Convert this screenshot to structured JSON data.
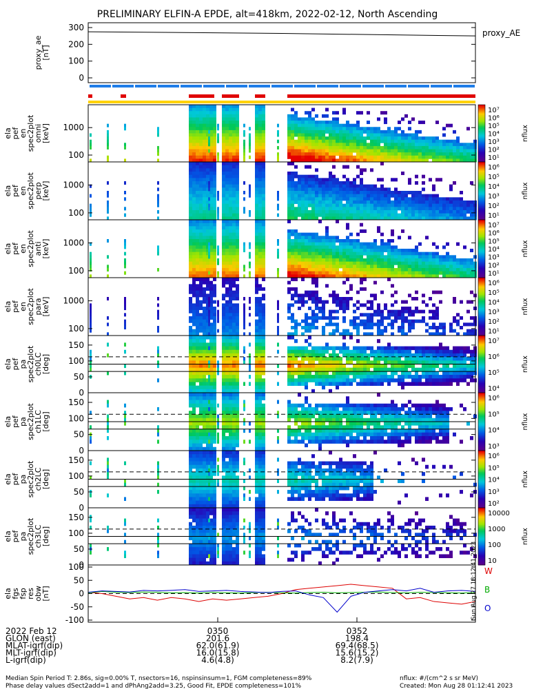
{
  "title": "PRELIMINARY ELFIN-A EPDE, alt=418km, 2022-02-12, North Ascending",
  "panels": [
    {
      "id": "proxy_ae",
      "ylabel": [
        "proxy_ae",
        "[nT]"
      ],
      "yticks": [
        "300",
        "200",
        "100",
        "0"
      ],
      "right_label": "proxy_AE"
    },
    {
      "id": "omni",
      "ylabel": [
        "ela",
        "pef",
        "en",
        "spec2plot",
        "omni",
        "[keV]"
      ],
      "yticks": [
        "1000",
        "100"
      ],
      "cbar_ticks": [
        "10⁷",
        "10⁶",
        "10⁵",
        "10⁴",
        "10³",
        "10²",
        "10¹"
      ],
      "cbar_label": "nflux",
      "kind": "energy",
      "sat": 1.0
    },
    {
      "id": "perp",
      "ylabel": [
        "ela",
        "pef",
        "en",
        "spec2plot",
        "perp",
        "[keV]"
      ],
      "yticks": [
        "1000",
        "100"
      ],
      "cbar_ticks": [
        "10⁶",
        "10⁵",
        "10⁴",
        "10³",
        "10²",
        "10¹"
      ],
      "cbar_label": "nflux",
      "kind": "energy",
      "sat": 0.55
    },
    {
      "id": "anti",
      "ylabel": [
        "ela",
        "pef",
        "en",
        "spec2plot",
        "anti",
        "[keV]"
      ],
      "yticks": [
        "1000",
        "100"
      ],
      "cbar_ticks": [
        "10⁷",
        "10⁶",
        "10⁵",
        "10⁴",
        "10³",
        "10²",
        "10¹"
      ],
      "cbar_label": "nflux",
      "kind": "energy",
      "sat": 0.95
    },
    {
      "id": "para",
      "ylabel": [
        "ela",
        "pef",
        "en",
        "spec2plot",
        "para",
        "[keV]"
      ],
      "yticks": [
        "1000",
        "100"
      ],
      "cbar_ticks": [
        "10⁶",
        "10⁵",
        "10⁴",
        "10³",
        "10²",
        "10¹"
      ],
      "cbar_label": "nflux",
      "kind": "energy",
      "sat": 0.35
    },
    {
      "id": "ch0LC",
      "ylabel": [
        "ela",
        "pef",
        "pa",
        "spec2plot",
        "ch0LC",
        "[deg]"
      ],
      "yticks": [
        "150",
        "100",
        "50",
        "0"
      ],
      "cbar_ticks": [
        "10⁷",
        "10⁶",
        "10⁵",
        "10⁴"
      ],
      "cbar_label": "nflux",
      "kind": "pa",
      "sat": 1.0
    },
    {
      "id": "ch1LC",
      "ylabel": [
        "ela",
        "pef",
        "pa",
        "spec2plot",
        "ch1LC",
        "[deg]"
      ],
      "yticks": [
        "150",
        "100",
        "50",
        "0"
      ],
      "cbar_ticks": [
        "10⁶",
        "10⁵",
        "10⁴",
        "10³"
      ],
      "cbar_label": "nflux",
      "kind": "pa",
      "sat": 0.8
    },
    {
      "id": "ch2LC",
      "ylabel": [
        "ela",
        "pef",
        "pa",
        "spec2plot",
        "ch2LC",
        "[deg]"
      ],
      "yticks": [
        "150",
        "100",
        "50",
        "0"
      ],
      "cbar_ticks": [
        "10⁶",
        "10⁵",
        "10⁴",
        "10³",
        "10²"
      ],
      "cbar_label": "nflux",
      "kind": "pa",
      "sat": 0.55
    },
    {
      "id": "ch3LC",
      "ylabel": [
        "ela",
        "pef",
        "pa",
        "spec2plot",
        "ch3LC",
        "[deg]"
      ],
      "yticks": [
        "150",
        "100",
        "50",
        "0"
      ],
      "cbar_ticks": [
        "10000",
        "1000",
        "100",
        "10"
      ],
      "cbar_label": "nflux",
      "kind": "pa",
      "sat": 0.4
    },
    {
      "id": "fgs",
      "ylabel": [
        "ela",
        "fgs",
        "fsp",
        "res",
        "obw",
        "[nT]"
      ],
      "yticks": [
        "100",
        "50",
        "0",
        "-50",
        "-100"
      ],
      "legend": [
        "W",
        "B",
        "O"
      ],
      "stamp": "Sun Aug 27 18:12:41 2023"
    }
  ],
  "chart_data": {
    "type": "heatmap",
    "title": "PRELIMINARY ELFIN-A EPDE, alt=418km, 2022-02-12, North Ascending",
    "proxy_ae": {
      "x": [
        0,
        0.5,
        1
      ],
      "y": [
        275,
        265,
        250
      ],
      "ylim": [
        0,
        300
      ]
    },
    "fgs": {
      "ylim": [
        -100,
        100
      ],
      "series": [
        {
          "name": "W",
          "color": "#dd0000",
          "values": [
            5,
            0,
            -10,
            -20,
            -15,
            -25,
            -15,
            -20,
            -30,
            -20,
            -25,
            -20,
            -15,
            -10,
            0,
            15,
            20,
            25,
            30,
            35,
            30,
            25,
            20,
            -20,
            -15,
            -30,
            -35,
            -40,
            -30
          ]
        },
        {
          "name": "B",
          "color": "#00aa00",
          "values": [
            3,
            8,
            5,
            4,
            6,
            5,
            3,
            4,
            2,
            5,
            3,
            2,
            4,
            5,
            3,
            2,
            4,
            5,
            3,
            4,
            5,
            6,
            4,
            3,
            5,
            4,
            3,
            2,
            4
          ]
        },
        {
          "name": "O",
          "color": "#0000cc",
          "values": [
            5,
            10,
            8,
            6,
            12,
            10,
            12,
            15,
            8,
            10,
            12,
            8,
            6,
            4,
            8,
            10,
            -5,
            -15,
            -70,
            -10,
            5,
            10,
            15,
            10,
            20,
            5,
            10,
            12,
            8
          ]
        }
      ]
    }
  },
  "xticks": [
    "0350",
    "0352"
  ],
  "footer_rows": [
    {
      "label": "2022 Feb 12",
      "v1": "0350",
      "v2": "0352"
    },
    {
      "label": "GLON (east)",
      "v1": "201.6",
      "v2": "198.4"
    },
    {
      "label": "MLAT-igrf(dip)",
      "v1": "62.0(61.9)",
      "v2": "69.4(68.5)"
    },
    {
      "label": "MLT-igrf(dip)",
      "v1": "16.0(15.8)",
      "v2": "15.6(15.2)"
    },
    {
      "label": "L-igrf(dip)",
      "v1": "4.6(4.8)",
      "v2": "8.2(7.9)"
    }
  ],
  "footnote1": "Median Spin Period T: 2.86s, sig=0.00% T, nsectors=16, nspinsinsum=1, FGM completeness=89%",
  "footnote2": "Phase delay values dSect2add=1 and dPhAng2add=3.25, Good Fit, EPDE completeness=101%",
  "nflux_units": "nflux: #/(cm^2 s sr MeV)",
  "created": "Created: Mon Aug 28 01:12:41 2023"
}
